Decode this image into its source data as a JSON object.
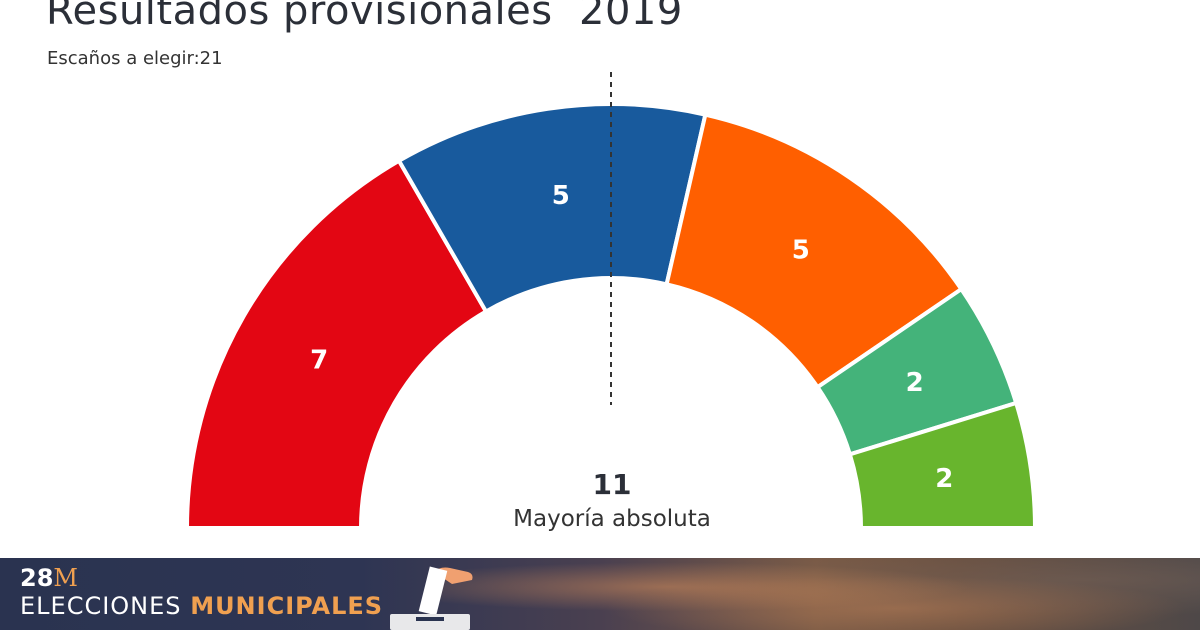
{
  "chart_data": {
    "type": "pie",
    "subtype": "semicircle-parliament",
    "title": "Resultados provisionales  2019",
    "subtitle": "Escaños a elegir:21",
    "total_seats": 21,
    "majority": {
      "value": 11,
      "label": "Mayoría absoluta"
    },
    "series": [
      {
        "value": 7,
        "color": "#e30613"
      },
      {
        "value": 5,
        "color": "#185a9d"
      },
      {
        "value": 5,
        "color": "#ff5f00"
      },
      {
        "value": 2,
        "color": "#44b37a"
      },
      {
        "value": 2,
        "color": "#68b52d"
      }
    ]
  },
  "banner": {
    "tag_number": "28",
    "tag_letter": "M",
    "word1": "ELECCIONES",
    "word2": "MUNICIPALES",
    "accent_color": "#f0a050"
  }
}
